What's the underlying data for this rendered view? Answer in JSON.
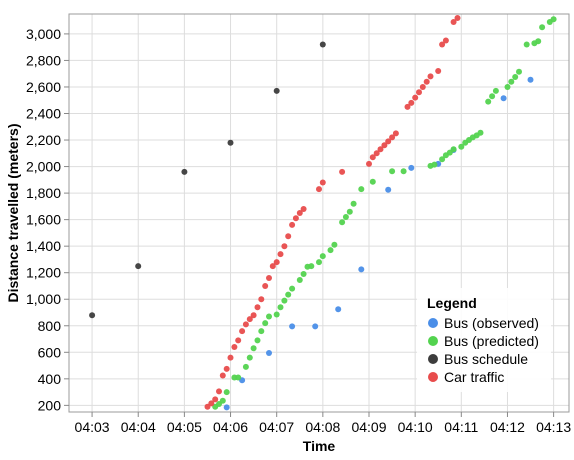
{
  "chart_data": {
    "type": "scatter",
    "xlabel": "Time",
    "ylabel": "Distance travelled (meters)",
    "x_tick_labels": [
      "04:03",
      "04:04",
      "04:05",
      "04:06",
      "04:07",
      "04:08",
      "04:09",
      "04:10",
      "04:11",
      "04:12",
      "04:13"
    ],
    "y_tick_labels": [
      "200",
      "400",
      "600",
      "800",
      "1,000",
      "1,200",
      "1,400",
      "1,600",
      "1,800",
      "2,000",
      "2,200",
      "2,400",
      "2,600",
      "2,800",
      "3,000"
    ],
    "y_ticks": [
      200,
      400,
      600,
      800,
      1000,
      1200,
      1400,
      1600,
      1800,
      2000,
      2200,
      2400,
      2600,
      2800,
      3000
    ],
    "xlim": [
      "04:02:30",
      "04:13:20"
    ],
    "ylim": [
      150,
      3150
    ],
    "grid": true,
    "legend": {
      "title": "Legend",
      "placement": "bottom-right",
      "entries": [
        "Bus (observed)",
        "Bus (predicted)",
        "Bus schedule",
        "Car traffic"
      ]
    },
    "series": [
      {
        "name": "Bus (observed)",
        "color": "#4a8ee8",
        "points": [
          [
            "04:05:55",
            185
          ],
          [
            "04:06:15",
            390
          ],
          [
            "04:06:50",
            595
          ],
          [
            "04:07:20",
            795
          ],
          [
            "04:07:50",
            795
          ],
          [
            "04:08:20",
            925
          ],
          [
            "04:08:50",
            1225
          ],
          [
            "04:09:25",
            1825
          ],
          [
            "04:09:55",
            1990
          ],
          [
            "04:10:30",
            2020
          ],
          [
            "04:10:50",
            2125
          ],
          [
            "04:11:55",
            2515
          ],
          [
            "04:12:30",
            2655
          ]
        ]
      },
      {
        "name": "Bus (predicted)",
        "color": "#53d34f",
        "points": [
          [
            "04:05:40",
            190
          ],
          [
            "04:05:45",
            210
          ],
          [
            "04:05:50",
            235
          ],
          [
            "04:05:55",
            300
          ],
          [
            "04:06:05",
            410
          ],
          [
            "04:06:10",
            410
          ],
          [
            "04:06:20",
            490
          ],
          [
            "04:06:25",
            560
          ],
          [
            "04:06:30",
            630
          ],
          [
            "04:06:35",
            690
          ],
          [
            "04:06:40",
            760
          ],
          [
            "04:06:45",
            820
          ],
          [
            "04:06:50",
            870
          ],
          [
            "04:07:00",
            885
          ],
          [
            "04:07:05",
            940
          ],
          [
            "04:07:10",
            990
          ],
          [
            "04:07:15",
            1035
          ],
          [
            "04:07:20",
            1080
          ],
          [
            "04:07:30",
            1145
          ],
          [
            "04:07:35",
            1190
          ],
          [
            "04:07:40",
            1245
          ],
          [
            "04:07:45",
            1250
          ],
          [
            "04:07:55",
            1280
          ],
          [
            "04:08:00",
            1325
          ],
          [
            "04:08:10",
            1370
          ],
          [
            "04:08:15",
            1410
          ],
          [
            "04:08:25",
            1580
          ],
          [
            "04:08:30",
            1620
          ],
          [
            "04:08:35",
            1660
          ],
          [
            "04:08:40",
            1720
          ],
          [
            "04:08:50",
            1830
          ],
          [
            "04:09:05",
            1885
          ],
          [
            "04:09:30",
            1965
          ],
          [
            "04:09:45",
            1965
          ],
          [
            "04:10:20",
            2005
          ],
          [
            "04:10:25",
            2015
          ],
          [
            "04:10:35",
            2055
          ],
          [
            "04:10:40",
            2085
          ],
          [
            "04:10:45",
            2105
          ],
          [
            "04:10:50",
            2130
          ],
          [
            "04:11:00",
            2150
          ],
          [
            "04:11:05",
            2180
          ],
          [
            "04:11:10",
            2200
          ],
          [
            "04:11:15",
            2220
          ],
          [
            "04:11:20",
            2235
          ],
          [
            "04:11:25",
            2255
          ],
          [
            "04:11:35",
            2490
          ],
          [
            "04:11:40",
            2530
          ],
          [
            "04:11:45",
            2570
          ],
          [
            "04:12:00",
            2600
          ],
          [
            "04:12:05",
            2640
          ],
          [
            "04:12:10",
            2675
          ],
          [
            "04:12:15",
            2715
          ],
          [
            "04:12:25",
            2920
          ],
          [
            "04:12:35",
            2930
          ],
          [
            "04:12:40",
            2945
          ],
          [
            "04:12:45",
            3050
          ],
          [
            "04:12:55",
            3090
          ],
          [
            "04:13:00",
            3110
          ]
        ]
      },
      {
        "name": "Bus schedule",
        "color": "#3c3c3c",
        "points": [
          [
            "04:03:00",
            880
          ],
          [
            "04:04:00",
            1250
          ],
          [
            "04:05:00",
            1960
          ],
          [
            "04:06:00",
            2180
          ],
          [
            "04:07:00",
            2570
          ],
          [
            "04:08:00",
            2920
          ]
        ]
      },
      {
        "name": "Car traffic",
        "color": "#e84c4c",
        "points": [
          [
            "04:05:30",
            190
          ],
          [
            "04:05:35",
            215
          ],
          [
            "04:05:40",
            245
          ],
          [
            "04:05:45",
            305
          ],
          [
            "04:05:50",
            425
          ],
          [
            "04:05:55",
            475
          ],
          [
            "04:06:00",
            560
          ],
          [
            "04:06:05",
            640
          ],
          [
            "04:06:10",
            690
          ],
          [
            "04:06:15",
            760
          ],
          [
            "04:06:20",
            810
          ],
          [
            "04:06:25",
            850
          ],
          [
            "04:06:30",
            880
          ],
          [
            "04:06:35",
            940
          ],
          [
            "04:06:40",
            1000
          ],
          [
            "04:06:45",
            1100
          ],
          [
            "04:06:50",
            1160
          ],
          [
            "04:06:55",
            1250
          ],
          [
            "04:07:00",
            1280
          ],
          [
            "04:07:05",
            1340
          ],
          [
            "04:07:10",
            1400
          ],
          [
            "04:07:15",
            1475
          ],
          [
            "04:07:20",
            1560
          ],
          [
            "04:07:25",
            1610
          ],
          [
            "04:07:30",
            1650
          ],
          [
            "04:07:35",
            1680
          ],
          [
            "04:07:55",
            1830
          ],
          [
            "04:08:00",
            1880
          ],
          [
            "04:08:25",
            1960
          ],
          [
            "04:09:00",
            2020
          ],
          [
            "04:09:05",
            2070
          ],
          [
            "04:09:10",
            2100
          ],
          [
            "04:09:15",
            2130
          ],
          [
            "04:09:20",
            2160
          ],
          [
            "04:09:25",
            2190
          ],
          [
            "04:09:30",
            2220
          ],
          [
            "04:09:35",
            2250
          ],
          [
            "04:09:50",
            2450
          ],
          [
            "04:09:55",
            2480
          ],
          [
            "04:10:00",
            2520
          ],
          [
            "04:10:05",
            2560
          ],
          [
            "04:10:10",
            2600
          ],
          [
            "04:10:15",
            2640
          ],
          [
            "04:10:20",
            2680
          ],
          [
            "04:10:30",
            2720
          ],
          [
            "04:10:35",
            2920
          ],
          [
            "04:10:40",
            2950
          ],
          [
            "04:10:50",
            3090
          ],
          [
            "04:10:55",
            3120
          ]
        ]
      }
    ]
  }
}
